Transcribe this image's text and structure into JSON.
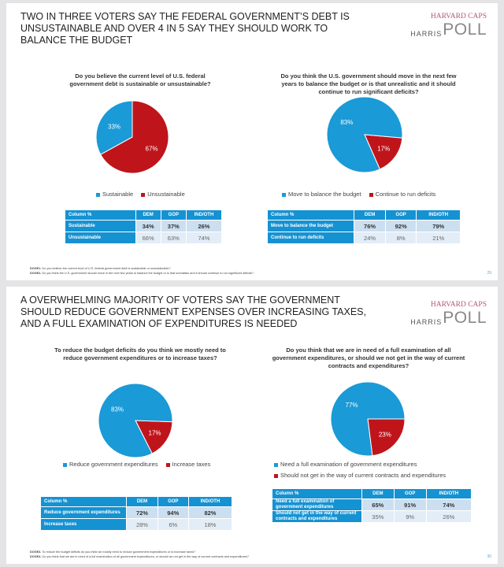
{
  "brand": {
    "line1": "HARVARD CAPS",
    "line2": "HARRIS",
    "line3": "POLL"
  },
  "colors": {
    "blue": "#1a9ad6",
    "red": "#c0141b"
  },
  "slides": [
    {
      "title": "TWO IN THREE VOTERS SAY THE FEDERAL GOVERNMENT’S DEBT IS UNSUSTAINABLE AND OVER 4 IN 5 SAY THEY SHOULD WORK TO BALANCE THE BUDGET",
      "page": "29",
      "footnotes": [
        {
          "id": "DOGE1.",
          "text": "Do you believe the current level of U.S. federal government debt is sustainable or unsustainable?"
        },
        {
          "id": "DOGE2.",
          "text": "Do you think the U.S. government should move in the next few years to balance the budget or is that unrealistic and it should continue to run significant deficits?"
        }
      ]
    },
    {
      "title": "A OVERWHELMING MAJORITY OF VOTERS SAY THE GOVERNMENT SHOULD REDUCE GOVERNMENT EXPENSES OVER INCREASING TAXES, AND A FULL EXAMINATION OF EXPENDITURES IS NEEDED",
      "page": "30",
      "footnotes": [
        {
          "id": "DOGE3.",
          "text": "To reduce the budget deficits do you think we mostly need to reduce government expenditures or to increase taxes?"
        },
        {
          "id": "DOGE4.",
          "text": "Do you think that we are in need of a full examination of all government expenditures, or should we not get in the way of current contracts and expenditures?"
        }
      ]
    }
  ],
  "chart_data": [
    {
      "type": "pie",
      "title": "Do you believe the current level of U.S. federal government debt is sustainable or unsustainable?",
      "categories": [
        "Sustainable",
        "Unsustainable"
      ],
      "values": [
        33,
        67
      ],
      "labels": [
        "33%",
        "67%"
      ],
      "legend": "bottom",
      "table": {
        "columns": [
          "Column %",
          "DEM",
          "GOP",
          "IND/OTH"
        ],
        "rows": [
          [
            "Sustainable",
            "34%",
            "37%",
            "26%"
          ],
          [
            "Unsustainable",
            "66%",
            "63%",
            "74%"
          ]
        ]
      }
    },
    {
      "type": "pie",
      "title": "Do you think the U.S. government should move in the next few years to balance the budget or is that unrealistic and it should continue to run significant deficits?",
      "categories": [
        "Move to balance the budget",
        "Continue to run deficits"
      ],
      "values": [
        83,
        17
      ],
      "labels": [
        "83%",
        "17%"
      ],
      "legend": "bottom",
      "table": {
        "columns": [
          "Column %",
          "DEM",
          "GOP",
          "IND/OTH"
        ],
        "rows": [
          [
            "Move to balance the budget",
            "76%",
            "92%",
            "79%"
          ],
          [
            "Continue to run deficits",
            "24%",
            "8%",
            "21%"
          ]
        ]
      }
    },
    {
      "type": "pie",
      "title": "To reduce the budget deficits do you think we mostly need to reduce government expenditures or to increase taxes?",
      "categories": [
        "Reduce government expenditures",
        "Increase taxes"
      ],
      "values": [
        83,
        17
      ],
      "labels": [
        "83%",
        "17%"
      ],
      "legend": "bottom",
      "table": {
        "columns": [
          "Column %",
          "DEM",
          "GOP",
          "IND/OTH"
        ],
        "rows": [
          [
            "Reduce government expenditures",
            "72%",
            "94%",
            "82%"
          ],
          [
            "Increase taxes",
            "28%",
            "6%",
            "18%"
          ]
        ]
      }
    },
    {
      "type": "pie",
      "title": "Do you think that we are in need of a full examination of all government expenditures, or should we not get in the way of current contracts and expenditures?",
      "categories": [
        "Need a full examination of government expenditures",
        "Should not get in the way of current contracts and expenditures"
      ],
      "values": [
        77,
        23
      ],
      "labels": [
        "77%",
        "23%"
      ],
      "legend": "bottom",
      "table": {
        "columns": [
          "Column %",
          "DEM",
          "GOP",
          "IND/OTH"
        ],
        "rows": [
          [
            "Need a full examination of government expenditures",
            "65%",
            "91%",
            "74%"
          ],
          [
            "Should not get in the way of current contracts and expenditures",
            "35%",
            "9%",
            "26%"
          ]
        ]
      }
    }
  ]
}
